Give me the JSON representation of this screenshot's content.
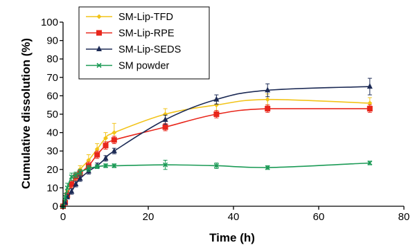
{
  "chart_data": {
    "type": "line",
    "xlabel": "Time (h)",
    "ylabel": "Cumulative dissolution (%)",
    "xlim": [
      0,
      80
    ],
    "ylim": [
      0,
      100
    ],
    "xticks": [
      0,
      20,
      40,
      60,
      80
    ],
    "xtick_labels": [
      "0",
      "20",
      "40",
      "60",
      "80"
    ],
    "yticks": [
      0,
      10,
      20,
      30,
      40,
      50,
      60,
      70,
      80,
      90,
      100
    ],
    "ytick_labels": [
      "0",
      "10",
      "20",
      "30",
      "40",
      "50",
      "60",
      "70",
      "80",
      "90",
      "100"
    ],
    "grid": false,
    "legend_position": "top-left",
    "series": [
      {
        "name": "SM-Lip-TFD",
        "color": "#F2C318",
        "marker": "diamond",
        "x": [
          0,
          0.5,
          1,
          2,
          3,
          4,
          6,
          8,
          10,
          12,
          24,
          36,
          48,
          72
        ],
        "y": [
          0,
          2,
          7,
          12,
          16,
          20,
          25,
          31,
          37,
          40,
          50,
          55,
          58,
          56
        ],
        "error": [
          0,
          1,
          1.5,
          2,
          2,
          2,
          3,
          3,
          3,
          5,
          3,
          3,
          3,
          3
        ]
      },
      {
        "name": "SM-Lip-RPE",
        "color": "#E8261B",
        "marker": "square",
        "x": [
          0,
          0.5,
          1,
          2,
          3,
          4,
          6,
          8,
          10,
          12,
          24,
          36,
          48,
          72
        ],
        "y": [
          0,
          2,
          6,
          12,
          16,
          18,
          22,
          28,
          33,
          36,
          43,
          50,
          53,
          53
        ],
        "error": [
          0,
          1,
          1.5,
          2,
          2,
          2,
          2,
          2,
          2,
          2,
          2,
          2,
          2,
          2
        ]
      },
      {
        "name": "SM-Lip-SEDS",
        "color": "#1C2A55",
        "marker": "triangle",
        "x": [
          0,
          0.5,
          1,
          2,
          3,
          4,
          6,
          8,
          10,
          12,
          24,
          36,
          48,
          72
        ],
        "y": [
          0,
          2,
          5,
          8,
          12,
          15,
          19,
          22,
          26,
          30,
          47,
          58,
          63,
          65
        ],
        "error": [
          0,
          1,
          1,
          1.5,
          1.5,
          1.5,
          1.5,
          1.5,
          1.5,
          1.5,
          2.5,
          2.5,
          3.5,
          4.5
        ]
      },
      {
        "name": "SM powder",
        "color": "#1A9A55",
        "marker": "x",
        "x": [
          0,
          0.5,
          1,
          2,
          3,
          4,
          6,
          8,
          10,
          12,
          24,
          36,
          48,
          72
        ],
        "y": [
          0,
          5,
          10,
          16,
          17,
          18.5,
          20.5,
          21.5,
          22,
          22,
          22.5,
          22,
          21,
          23.5
        ],
        "error": [
          0,
          2,
          2.5,
          2,
          1.5,
          1.5,
          1.5,
          1,
          1,
          1,
          2.5,
          1.5,
          1,
          1
        ]
      }
    ]
  }
}
